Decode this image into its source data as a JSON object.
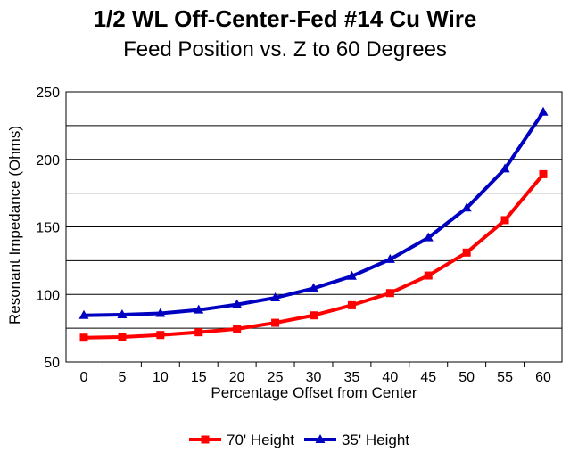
{
  "chart_data": {
    "type": "line",
    "title": "1/2 WL Off-Center-Fed #14 Cu Wire",
    "subtitle": "Feed Position vs. Z to 60 Degrees",
    "xlabel": "Percentage Offset from Center",
    "ylabel": "Resonant Impedance (Ohms)",
    "x": [
      0,
      5,
      10,
      15,
      20,
      25,
      30,
      35,
      40,
      45,
      50,
      55,
      60
    ],
    "xticks": [
      "0",
      "5",
      "10",
      "15",
      "20",
      "25",
      "30",
      "35",
      "40",
      "45",
      "50",
      "55",
      "60"
    ],
    "yticks": [
      "50",
      "100",
      "150",
      "200",
      "250"
    ],
    "ylim": [
      50,
      250
    ],
    "grid": true,
    "legend_position": "bottom",
    "series": [
      {
        "name": "70' Height",
        "color": "#ff0000",
        "marker": "square",
        "values": [
          68,
          68.5,
          70,
          72,
          74.5,
          79,
          84.5,
          92,
          101,
          114,
          131,
          155,
          189
        ]
      },
      {
        "name": "35' Height",
        "color": "#0000c0",
        "marker": "triangle",
        "values": [
          84.5,
          85,
          86,
          88.5,
          92.5,
          97.5,
          104.5,
          113.5,
          126,
          142,
          164,
          193,
          235
        ]
      }
    ]
  }
}
